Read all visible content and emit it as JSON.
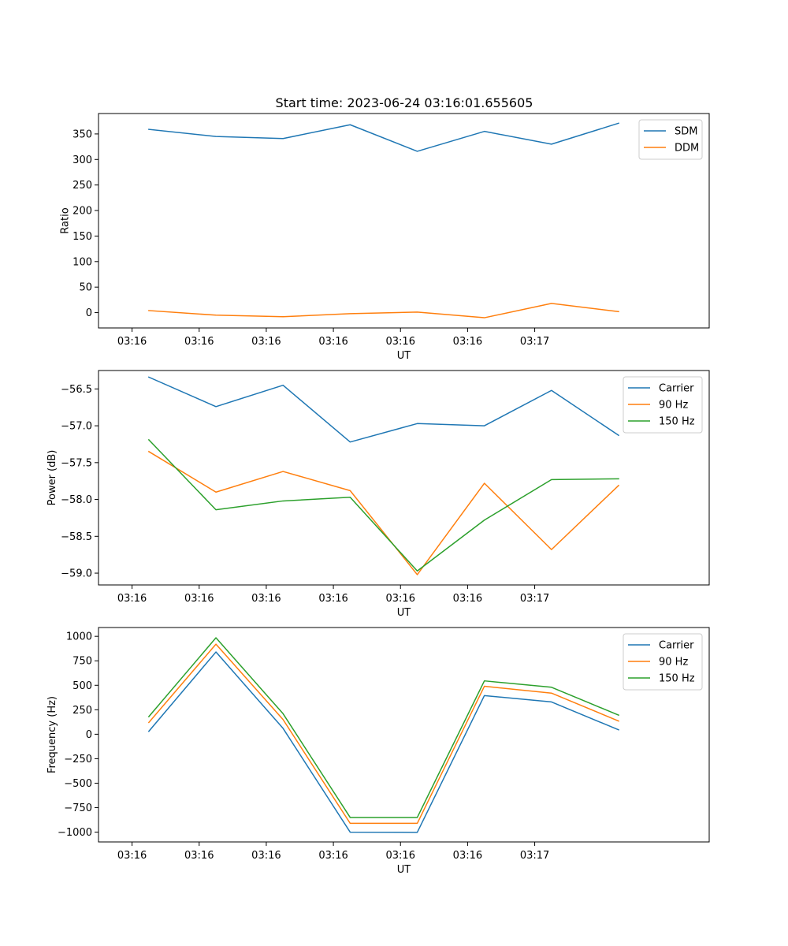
{
  "figure": {
    "title": "Start time: 2023-06-24 03:16:01.655605"
  },
  "chart_data": [
    {
      "type": "line",
      "xlabel": "UT",
      "ylabel": "Ratio",
      "x_tick_labels": [
        "03:16",
        "03:16",
        "03:16",
        "03:16",
        "03:16",
        "03:16",
        "03:17"
      ],
      "xlim": [
        -0.5,
        8.6
      ],
      "ylim": [
        -30,
        390
      ],
      "yticks": [
        0,
        50,
        100,
        150,
        200,
        250,
        300,
        350
      ],
      "y_tick_labels": [
        "0",
        "50",
        "100",
        "150",
        "200",
        "250",
        "300",
        "350"
      ],
      "legend_position": "top-right",
      "x": [
        0.25,
        1.25,
        2.25,
        3.25,
        4.25,
        5.25,
        6.25,
        7.25
      ],
      "series": [
        {
          "name": "SDM",
          "color": "#1f77b4",
          "values": [
            359,
            345,
            341,
            368,
            316,
            355,
            330,
            371
          ]
        },
        {
          "name": "DDM",
          "color": "#ff7f0e",
          "values": [
            4,
            -5,
            -8,
            -2,
            1,
            -10,
            18,
            2
          ]
        }
      ]
    },
    {
      "type": "line",
      "xlabel": "UT",
      "ylabel": "Power (dB)",
      "x_tick_labels": [
        "03:16",
        "03:16",
        "03:16",
        "03:16",
        "03:16",
        "03:16",
        "03:17"
      ],
      "xlim": [
        -0.5,
        8.6
      ],
      "ylim": [
        -59.16,
        -56.25
      ],
      "yticks": [
        -59.0,
        -58.5,
        -58.0,
        -57.5,
        -57.0,
        -56.5
      ],
      "y_tick_labels": [
        "−59.0",
        "−58.5",
        "−58.0",
        "−57.5",
        "−57.0",
        "−56.5"
      ],
      "legend_position": "top-right",
      "x": [
        0.25,
        1.25,
        2.25,
        3.25,
        4.25,
        5.25,
        6.25,
        7.25
      ],
      "series": [
        {
          "name": "Carrier",
          "color": "#1f77b4",
          "values": [
            -56.34,
            -56.74,
            -56.45,
            -57.22,
            -56.97,
            -57.0,
            -56.52,
            -57.13
          ]
        },
        {
          "name": "90 Hz",
          "color": "#ff7f0e",
          "values": [
            -57.35,
            -57.9,
            -57.62,
            -57.88,
            -59.02,
            -57.78,
            -58.68,
            -57.81
          ]
        },
        {
          "name": "150 Hz",
          "color": "#2ca02c",
          "values": [
            -57.19,
            -58.14,
            -58.02,
            -57.97,
            -58.97,
            -58.28,
            -57.73,
            -57.72
          ]
        }
      ]
    },
    {
      "type": "line",
      "xlabel": "UT",
      "ylabel": "Frequency (Hz)",
      "x_tick_labels": [
        "03:16",
        "03:16",
        "03:16",
        "03:16",
        "03:16",
        "03:16",
        "03:17"
      ],
      "xlim": [
        -0.5,
        8.6
      ],
      "ylim": [
        -1100,
        1090
      ],
      "yticks": [
        -1000,
        -750,
        -500,
        -250,
        0,
        250,
        500,
        750,
        1000
      ],
      "y_tick_labels": [
        "−1000",
        "−750",
        "−500",
        "−250",
        "0",
        "250",
        "500",
        "750",
        "1000"
      ],
      "legend_position": "top-right",
      "x": [
        0.25,
        1.25,
        2.25,
        3.25,
        4.25,
        5.25,
        6.25,
        7.25
      ],
      "series": [
        {
          "name": "Carrier",
          "color": "#1f77b4",
          "values": [
            30,
            840,
            60,
            -1000,
            -1002,
            395,
            330,
            45
          ]
        },
        {
          "name": "90 Hz",
          "color": "#ff7f0e",
          "values": [
            120,
            920,
            150,
            -910,
            -910,
            490,
            420,
            135
          ]
        },
        {
          "name": "150 Hz",
          "color": "#2ca02c",
          "values": [
            180,
            985,
            210,
            -850,
            -850,
            545,
            480,
            195
          ]
        }
      ]
    }
  ]
}
